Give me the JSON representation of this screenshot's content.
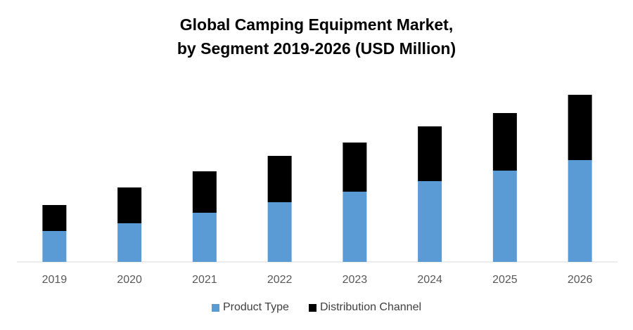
{
  "chart_data": {
    "type": "bar",
    "stacked": true,
    "title": "Global  Camping Equipment Market,",
    "subtitle": "by Segment 2019-2026 (USD Million)",
    "categories": [
      "2019",
      "2020",
      "2021",
      "2022",
      "2023",
      "2024",
      "2025",
      "2026"
    ],
    "series": [
      {
        "name": "Product Type",
        "color": "#5B9BD5",
        "values": [
          44,
          55,
          70,
          85,
          100,
          115,
          130,
          145
        ]
      },
      {
        "name": "Distribution Channel",
        "color": "#000000",
        "values": [
          37,
          51,
          59,
          66,
          70,
          78,
          82,
          93
        ]
      }
    ],
    "xlabel": "",
    "ylabel": "",
    "ylim": [
      0,
      250
    ],
    "grid": false,
    "legend": "bottom",
    "note": "relative values estimated; no y-axis shown"
  }
}
